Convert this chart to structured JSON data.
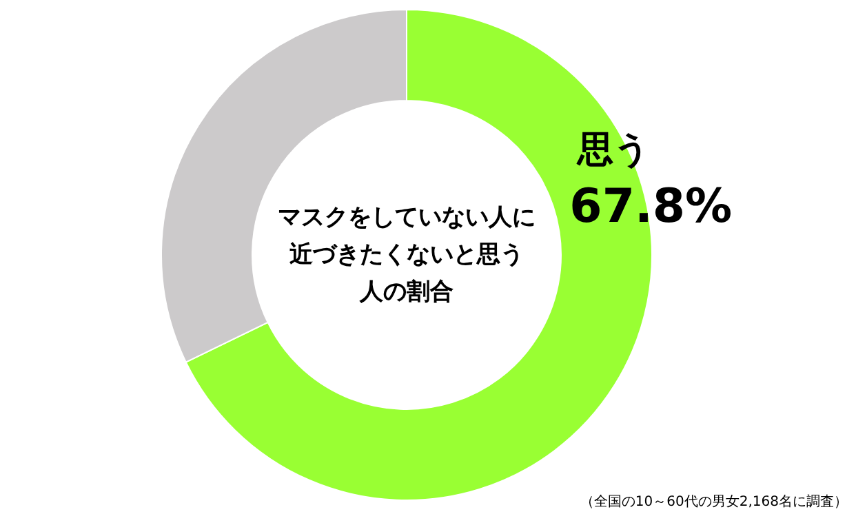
{
  "chart_data": {
    "type": "donut",
    "title": "マスクをしていない人に近づきたくないと思う人の割合",
    "categories": [
      "思う",
      null
    ],
    "values": [
      67.8,
      32.2
    ],
    "value_labels": [
      "67.8%",
      null
    ],
    "colors": [
      "#99ff33",
      "#cccacb"
    ],
    "annotations": [
      "（全国の10～60代の男女2,168名に調査）"
    ]
  }
}
